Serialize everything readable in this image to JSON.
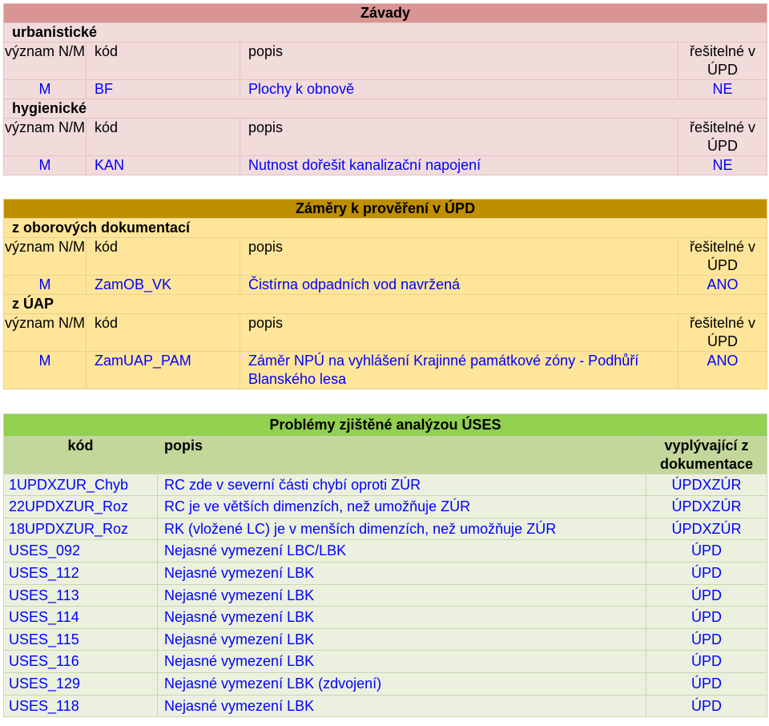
{
  "zavady": {
    "title": "Závady",
    "sections": [
      {
        "name": "urbanistické",
        "headers": {
          "vyznam": "význam N/M",
          "kod": "kód",
          "popis": "popis",
          "resitelne": "řešitelné v ÚPD"
        },
        "rows": [
          {
            "vyznam": "M",
            "kod": "BF",
            "popis": "Plochy k obnově",
            "resitelne": "NE"
          }
        ]
      },
      {
        "name": "hygienické",
        "headers": {
          "vyznam": "význam N/M",
          "kod": "kód",
          "popis": "popis",
          "resitelne": "řešitelné v ÚPD"
        },
        "rows": [
          {
            "vyznam": "M",
            "kod": "KAN",
            "popis": "Nutnost dořešit kanalizační napojení",
            "resitelne": "NE"
          }
        ]
      }
    ]
  },
  "zamery": {
    "title": "Záměry k prověření v ÚPD",
    "sections": [
      {
        "name": "z oborových dokumentací",
        "headers": {
          "vyznam": "význam N/M",
          "kod": "kód",
          "popis": "popis",
          "resitelne": "řešitelné v ÚPD"
        },
        "rows": [
          {
            "vyznam": "M",
            "kod": "ZamOB_VK",
            "popis": "Čistírna odpadních vod navržená",
            "resitelne": "ANO"
          }
        ]
      },
      {
        "name": "z ÚAP",
        "headers": {
          "vyznam": "význam N/M",
          "kod": "kód",
          "popis": "popis",
          "resitelne": "řešitelné v ÚPD"
        },
        "rows": [
          {
            "vyznam": "M",
            "kod": "ZamUAP_PAM",
            "popis": "Záměr NPÚ na vyhlášení Krajinné památkové zóny - Podhůří Blanského lesa",
            "resitelne": "ANO"
          }
        ]
      }
    ]
  },
  "problemy": {
    "title": "Problémy zjištěné analýzou ÚSES",
    "headers": {
      "kod": "kód",
      "popis": "popis",
      "vyplyvajici": "vyplývající z dokumentace"
    },
    "rows": [
      {
        "kod": "1UPDXZUR_Chyb",
        "popis": "RC zde v severní části chybí oproti ZÚR",
        "vyplyvajici": "ÚPDXZÚR"
      },
      {
        "kod": "22UPDXZUR_Roz",
        "popis": "RC je ve větších dimenzích, než umožňuje ZÚR",
        "vyplyvajici": "ÚPDXZÚR"
      },
      {
        "kod": "18UPDXZUR_Roz",
        "popis": "RK (vložené LC) je v menších dimenzích, než umožňuje ZÚR",
        "vyplyvajici": "ÚPDXZÚR"
      },
      {
        "kod": "USES_092",
        "popis": "Nejasné vymezení LBC/LBK",
        "vyplyvajici": "ÚPD"
      },
      {
        "kod": "USES_112",
        "popis": "Nejasné vymezení LBK",
        "vyplyvajici": "ÚPD"
      },
      {
        "kod": "USES_113",
        "popis": "Nejasné vymezení LBK",
        "vyplyvajici": "ÚPD"
      },
      {
        "kod": "USES_114",
        "popis": "Nejasné vymezení LBK",
        "vyplyvajici": "ÚPD"
      },
      {
        "kod": "USES_115",
        "popis": "Nejasné vymezení LBK",
        "vyplyvajici": "ÚPD"
      },
      {
        "kod": "USES_116",
        "popis": "Nejasné vymezení LBK",
        "vyplyvajici": "ÚPD"
      },
      {
        "kod": "USES_129",
        "popis": "Nejasné vymezení LBK (zdvojení)",
        "vyplyvajici": "ÚPD"
      },
      {
        "kod": "USES_118",
        "popis": "Nejasné vymezení LBK",
        "vyplyvajici": "ÚPD"
      }
    ]
  },
  "colors": {
    "zavady_header": "#d99594",
    "zavady_bg": "#f2dbdb",
    "zamery_header": "#bf8f00",
    "zamery_bg": "#ffe599",
    "problemy_header": "#92d050",
    "problemy_subheader": "#c4d79b",
    "problemy_bg": "#ebf1de",
    "value_text": "#0000ff"
  }
}
